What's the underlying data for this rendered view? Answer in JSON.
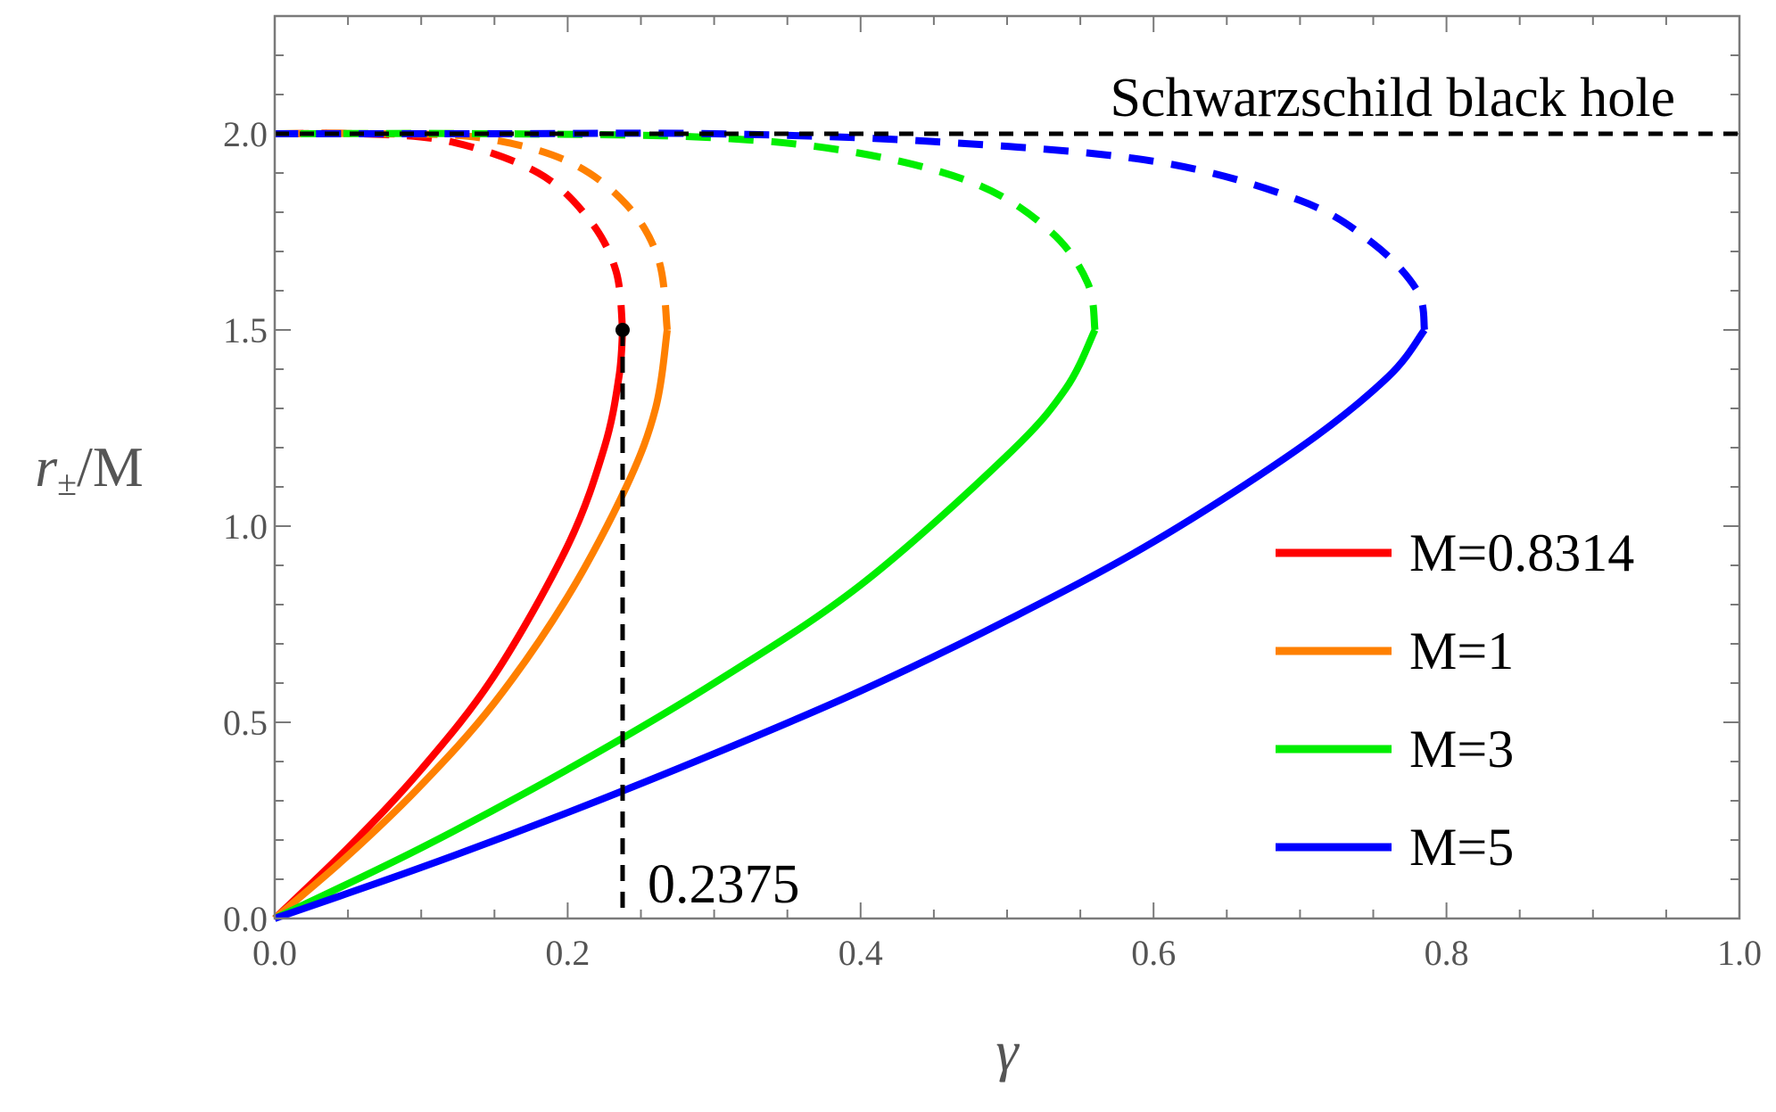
{
  "chart_data": {
    "type": "line",
    "xlabel": "γ",
    "ylabel": "r±/M",
    "xlim": [
      0,
      1.0
    ],
    "ylim": [
      0,
      2.3
    ],
    "x_ticks": [
      "0.0",
      "0.2",
      "0.4",
      "0.6",
      "0.8",
      "1.0"
    ],
    "y_ticks": [
      "0.0",
      "0.5",
      "1.0",
      "1.5",
      "2.0"
    ],
    "grid": false,
    "legend_position": "right",
    "reference_line": {
      "label": "Schwarzschild black hole",
      "y": 2.0,
      "color": "#000000",
      "style": "dashed"
    },
    "vertical_marker": {
      "label": "0.2375",
      "x": 0.2375,
      "y_top": 1.5,
      "color": "#000000",
      "style": "dashed"
    },
    "marker_point": {
      "x": 0.2375,
      "y": 1.5,
      "color": "#000000"
    },
    "series": [
      {
        "name": "M=0.8314",
        "color": "#ff0000",
        "M": 0.8314,
        "solid": [
          [
            0,
            0
          ],
          [
            0.05,
            0.18
          ],
          [
            0.1,
            0.38
          ],
          [
            0.15,
            0.62
          ],
          [
            0.2,
            0.95
          ],
          [
            0.225,
            1.2
          ],
          [
            0.235,
            1.38
          ],
          [
            0.2375,
            1.5
          ]
        ],
        "dashed": [
          [
            0.2375,
            1.5
          ],
          [
            0.233,
            1.65
          ],
          [
            0.215,
            1.78
          ],
          [
            0.18,
            1.9
          ],
          [
            0.12,
            1.98
          ],
          [
            0.06,
            2.0
          ],
          [
            0,
            2.0
          ]
        ]
      },
      {
        "name": "M=1",
        "color": "#ff8000",
        "M": 1,
        "solid": [
          [
            0,
            0
          ],
          [
            0.05,
            0.16
          ],
          [
            0.1,
            0.34
          ],
          [
            0.15,
            0.55
          ],
          [
            0.2,
            0.82
          ],
          [
            0.24,
            1.1
          ],
          [
            0.26,
            1.3
          ],
          [
            0.268,
            1.5
          ]
        ],
        "dashed": [
          [
            0.268,
            1.5
          ],
          [
            0.262,
            1.68
          ],
          [
            0.24,
            1.82
          ],
          [
            0.2,
            1.93
          ],
          [
            0.14,
            1.99
          ],
          [
            0.07,
            2.0
          ],
          [
            0,
            2.0
          ]
        ]
      },
      {
        "name": "M=3",
        "color": "#00ee00",
        "M": 3,
        "solid": [
          [
            0,
            0
          ],
          [
            0.1,
            0.18
          ],
          [
            0.2,
            0.38
          ],
          [
            0.3,
            0.6
          ],
          [
            0.4,
            0.85
          ],
          [
            0.5,
            1.18
          ],
          [
            0.54,
            1.35
          ],
          [
            0.56,
            1.5
          ]
        ],
        "dashed": [
          [
            0.56,
            1.5
          ],
          [
            0.555,
            1.62
          ],
          [
            0.53,
            1.75
          ],
          [
            0.48,
            1.87
          ],
          [
            0.4,
            1.95
          ],
          [
            0.3,
            1.99
          ],
          [
            0.15,
            2.0
          ],
          [
            0,
            2.0
          ]
        ]
      },
      {
        "name": "M=5",
        "color": "#0000ff",
        "M": 5,
        "solid": [
          [
            0,
            0
          ],
          [
            0.1,
            0.13
          ],
          [
            0.2,
            0.27
          ],
          [
            0.3,
            0.42
          ],
          [
            0.4,
            0.58
          ],
          [
            0.5,
            0.76
          ],
          [
            0.6,
            0.96
          ],
          [
            0.7,
            1.2
          ],
          [
            0.76,
            1.38
          ],
          [
            0.785,
            1.5
          ]
        ],
        "dashed": [
          [
            0.785,
            1.5
          ],
          [
            0.78,
            1.6
          ],
          [
            0.75,
            1.72
          ],
          [
            0.7,
            1.83
          ],
          [
            0.6,
            1.93
          ],
          [
            0.45,
            1.98
          ],
          [
            0.3,
            2.0
          ],
          [
            0.15,
            2.0
          ],
          [
            0,
            2.0
          ]
        ]
      }
    ]
  }
}
